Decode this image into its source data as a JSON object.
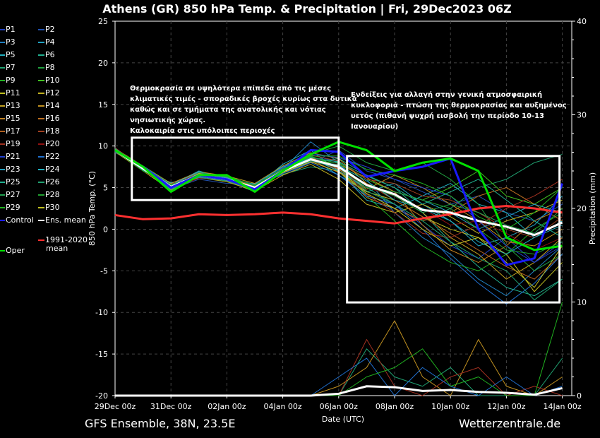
{
  "chart_data": {
    "type": "line",
    "title": "Athens  (GR)  850 hPa Temp. & Precipitation | Fri, 29Dec2023 06Z",
    "xlabel": "Date (UTC)",
    "ylabel": "850 hPa Temp. (°C)",
    "y2label": "Precipitation (mm)",
    "ylim": [
      -20,
      25
    ],
    "y2lim": [
      0,
      40
    ],
    "yticks": [
      25,
      20,
      15,
      10,
      5,
      0,
      -5,
      -10,
      -15,
      -20
    ],
    "y2ticks": [
      40,
      30,
      20,
      10,
      0
    ],
    "xticks": [
      "29Dec 00z",
      "31Dec 00z",
      "02Jan 00z",
      "04Jan 00z",
      "06Jan 00z",
      "08Jan 00z",
      "10Jan 00z",
      "12Jan 00z",
      "14Jan 00z"
    ],
    "x_days": [
      0,
      1,
      2,
      3,
      4,
      5,
      6,
      7,
      8,
      9,
      10,
      11,
      12,
      13,
      14,
      15,
      16
    ],
    "grid": true,
    "legend_position": "left-outside",
    "members": [
      {
        "name": "P1",
        "color": "#2040c0",
        "values": [
          9.6,
          7.0,
          5.5,
          6.8,
          6.2,
          4.6,
          7.5,
          9.0,
          8.0,
          4.0,
          3.0,
          0.5,
          -2.0,
          -3.5,
          -1.0,
          -4.0,
          -2.0
        ]
      },
      {
        "name": "P2",
        "color": "#2050b0",
        "values": [
          9.2,
          7.5,
          4.8,
          6.0,
          5.5,
          5.5,
          6.5,
          8.0,
          9.5,
          7.0,
          6.0,
          4.5,
          3.0,
          4.0,
          2.0,
          1.0,
          3.0
        ]
      },
      {
        "name": "P3",
        "color": "#2080c0",
        "values": [
          9.8,
          7.2,
          5.0,
          6.5,
          6.5,
          4.8,
          7.2,
          10.5,
          8.0,
          6.0,
          2.0,
          -1.0,
          -3.0,
          -6.0,
          -8.0,
          -5.0,
          -2.0
        ]
      },
      {
        "name": "P4",
        "color": "#20a0c0",
        "values": [
          9.4,
          7.6,
          5.3,
          7.0,
          6.0,
          5.2,
          6.8,
          8.5,
          6.5,
          4.5,
          5.5,
          3.0,
          1.0,
          -2.0,
          -1.0,
          0.5,
          4.0
        ]
      },
      {
        "name": "P5",
        "color": "#20b0c0",
        "values": [
          9.5,
          7.0,
          5.6,
          6.2,
          6.3,
          5.0,
          7.8,
          9.5,
          7.0,
          3.5,
          2.5,
          4.0,
          5.5,
          3.0,
          2.0,
          -1.0,
          1.0
        ]
      },
      {
        "name": "P6",
        "color": "#20b090",
        "values": [
          9.7,
          7.4,
          5.0,
          6.8,
          5.8,
          4.5,
          7.0,
          8.0,
          8.5,
          6.5,
          5.0,
          2.0,
          -1.5,
          -4.5,
          -7.0,
          -8.0,
          -6.0
        ]
      },
      {
        "name": "P7",
        "color": "#20a070",
        "values": [
          9.3,
          7.1,
          4.9,
          6.4,
          6.1,
          5.4,
          6.6,
          7.5,
          7.0,
          5.0,
          3.0,
          1.0,
          2.5,
          5.0,
          6.0,
          8.0,
          9.0
        ]
      },
      {
        "name": "P8",
        "color": "#20a040",
        "values": [
          9.6,
          7.5,
          5.2,
          6.6,
          5.9,
          4.9,
          7.4,
          9.0,
          10.0,
          8.0,
          7.0,
          8.0,
          6.0,
          3.0,
          -2.0,
          -5.0,
          -3.0
        ]
      },
      {
        "name": "P9",
        "color": "#20b020",
        "values": [
          9.4,
          7.3,
          5.4,
          6.3,
          6.4,
          5.1,
          7.1,
          8.8,
          7.5,
          4.0,
          1.0,
          -2.0,
          -4.0,
          -5.0,
          -3.0,
          0.0,
          2.0
        ]
      },
      {
        "name": "P10",
        "color": "#40c020",
        "values": [
          9.5,
          7.2,
          5.0,
          6.7,
          6.0,
          5.3,
          6.9,
          8.2,
          8.0,
          6.0,
          4.5,
          3.5,
          5.0,
          7.0,
          4.0,
          3.0,
          5.0
        ]
      },
      {
        "name": "P11",
        "color": "#c0c020",
        "values": [
          9.6,
          7.4,
          5.2,
          6.5,
          6.2,
          5.0,
          7.0,
          8.5,
          7.0,
          4.5,
          3.5,
          1.5,
          0.0,
          -1.0,
          -3.0,
          -7.5,
          -4.0
        ]
      },
      {
        "name": "P12",
        "color": "#c0b020",
        "values": [
          9.3,
          7.0,
          4.7,
          6.2,
          5.7,
          4.6,
          6.5,
          7.8,
          6.0,
          3.0,
          2.0,
          3.0,
          1.5,
          -0.5,
          1.0,
          2.0,
          3.5
        ]
      },
      {
        "name": "P13",
        "color": "#c0a020",
        "values": [
          9.7,
          7.6,
          5.5,
          6.9,
          6.4,
          5.5,
          7.6,
          9.2,
          8.5,
          5.5,
          4.0,
          2.0,
          -1.0,
          -3.0,
          -6.0,
          -4.0,
          -1.0
        ]
      },
      {
        "name": "P14",
        "color": "#c09020",
        "values": [
          9.5,
          7.3,
          5.1,
          6.6,
          6.1,
          5.2,
          7.2,
          8.6,
          7.2,
          4.8,
          6.5,
          5.0,
          3.0,
          1.0,
          -1.5,
          -2.0,
          0.0
        ]
      },
      {
        "name": "P15",
        "color": "#c08020",
        "values": [
          9.4,
          7.1,
          4.9,
          6.3,
          5.8,
          4.7,
          6.8,
          8.0,
          7.8,
          6.2,
          4.5,
          0.5,
          -2.5,
          -4.0,
          -2.0,
          1.0,
          2.5
        ]
      },
      {
        "name": "P16",
        "color": "#c07020",
        "values": [
          9.6,
          7.5,
          5.3,
          6.8,
          6.3,
          5.1,
          7.3,
          8.7,
          7.0,
          3.8,
          2.5,
          1.0,
          2.0,
          4.0,
          5.0,
          3.0,
          1.0
        ]
      },
      {
        "name": "P17",
        "color": "#b06020",
        "values": [
          9.5,
          7.2,
          5.0,
          6.5,
          6.0,
          4.9,
          7.0,
          8.3,
          6.8,
          5.5,
          3.5,
          1.5,
          -0.5,
          -2.5,
          -4.5,
          -6.0,
          -3.0
        ]
      },
      {
        "name": "P18",
        "color": "#a04020",
        "values": [
          9.3,
          7.4,
          5.2,
          6.4,
          6.2,
          5.3,
          7.1,
          8.9,
          8.2,
          6.0,
          5.5,
          4.0,
          3.5,
          2.0,
          0.0,
          -1.0,
          1.5
        ]
      },
      {
        "name": "P19",
        "color": "#a03020",
        "values": [
          9.8,
          7.3,
          5.4,
          6.7,
          5.9,
          5.0,
          6.9,
          8.1,
          7.6,
          4.2,
          2.0,
          -0.5,
          -1.0,
          0.5,
          2.5,
          4.0,
          6.0
        ]
      },
      {
        "name": "P20",
        "color": "#901010",
        "values": [
          9.4,
          7.0,
          5.0,
          6.1,
          6.0,
          4.8,
          7.2,
          8.4,
          7.3,
          5.0,
          4.0,
          2.5,
          0.5,
          1.0,
          -0.5,
          -2.5,
          -1.0
        ]
      },
      {
        "name": "P21",
        "color": "#2040d0",
        "values": [
          9.5,
          7.5,
          5.1,
          6.6,
          6.4,
          5.2,
          7.4,
          9.1,
          8.6,
          7.5,
          6.0,
          5.0,
          4.0,
          1.0,
          -2.0,
          -4.0,
          -1.5
        ]
      },
      {
        "name": "P22",
        "color": "#2070d0",
        "values": [
          9.6,
          7.2,
          4.8,
          6.3,
          5.9,
          4.9,
          6.7,
          8.0,
          6.5,
          4.0,
          3.0,
          0.0,
          -3.5,
          -6.5,
          -9.0,
          -6.5,
          -3.0
        ]
      },
      {
        "name": "P23",
        "color": "#20a0c0",
        "values": [
          9.4,
          7.4,
          5.3,
          6.9,
          6.1,
          5.4,
          7.5,
          8.5,
          7.0,
          5.0,
          4.5,
          3.5,
          2.0,
          0.0,
          1.5,
          3.0,
          2.0
        ]
      },
      {
        "name": "P24",
        "color": "#20b0c0",
        "values": [
          9.5,
          7.1,
          5.0,
          6.4,
          6.2,
          5.0,
          7.0,
          8.3,
          7.7,
          5.8,
          3.5,
          2.5,
          1.0,
          -1.5,
          -3.0,
          -1.0,
          0.5
        ]
      },
      {
        "name": "P25",
        "color": "#20b090",
        "values": [
          9.7,
          7.3,
          5.2,
          6.6,
          6.0,
          5.1,
          7.1,
          8.6,
          8.1,
          6.4,
          5.0,
          3.0,
          4.5,
          6.0,
          3.5,
          1.0,
          -1.0
        ]
      },
      {
        "name": "P26",
        "color": "#20a070",
        "values": [
          9.3,
          7.6,
          5.4,
          6.2,
          5.8,
          4.7,
          6.9,
          8.2,
          7.4,
          4.6,
          3.0,
          1.0,
          -1.5,
          -3.5,
          -5.0,
          -8.5,
          -6.0
        ]
      },
      {
        "name": "P27",
        "color": "#20a050",
        "values": [
          9.6,
          7.2,
          4.9,
          6.8,
          6.3,
          5.3,
          7.3,
          8.7,
          7.9,
          5.2,
          4.0,
          2.0,
          3.0,
          2.0,
          0.5,
          -0.5,
          2.5
        ]
      },
      {
        "name": "P28",
        "color": "#20a030",
        "values": [
          9.5,
          7.4,
          5.1,
          6.5,
          6.1,
          5.0,
          7.0,
          8.4,
          7.5,
          5.0,
          4.5,
          3.5,
          2.5,
          0.0,
          -2.5,
          -3.0,
          -1.5
        ]
      },
      {
        "name": "P29",
        "color": "#20b020",
        "values": [
          9.4,
          7.0,
          5.3,
          6.4,
          6.4,
          5.2,
          7.2,
          8.8,
          8.8,
          7.2,
          6.5,
          5.5,
          4.0,
          1.5,
          0.0,
          2.0,
          5.0
        ]
      },
      {
        "name": "P30",
        "color": "#c0c020",
        "values": [
          9.6,
          7.5,
          5.0,
          6.7,
          5.9,
          4.9,
          6.8,
          8.1,
          6.9,
          4.3,
          2.5,
          0.0,
          -2.0,
          -1.0,
          -4.0,
          -7.0,
          -2.0
        ]
      }
    ],
    "control": {
      "name": "Control",
      "color": "#1a1aff",
      "values": [
        9.5,
        7.5,
        5.0,
        6.5,
        6.0,
        4.8,
        7.0,
        9.5,
        9.3,
        6.3,
        7.0,
        7.5,
        8.5,
        0.0,
        -4.3,
        -3.5,
        5.5
      ]
    },
    "ens_mean": {
      "name": "Ens. mean",
      "color": "#ffffff",
      "values": [
        9.5,
        7.3,
        5.1,
        6.5,
        6.0,
        5.0,
        7.0,
        8.4,
        7.5,
        5.3,
        4.2,
        2.3,
        2.0,
        1.0,
        0.3,
        -0.7,
        0.8
      ]
    },
    "climate_mean": {
      "name": "1991-2020 mean",
      "name_line1": "1991-2020",
      "name_line2": "mean",
      "color": "#ff3030",
      "values": [
        1.7,
        1.2,
        1.3,
        1.8,
        1.7,
        1.8,
        2.0,
        1.8,
        1.3,
        1.0,
        0.7,
        1.3,
        1.8,
        2.5,
        2.8,
        2.5,
        2.0
      ]
    },
    "oper": {
      "name": "Oper",
      "color": "#00e000",
      "values": [
        9.5,
        7.5,
        4.5,
        6.5,
        6.5,
        4.5,
        7.0,
        9.0,
        10.5,
        9.5,
        7.0,
        8.0,
        8.5,
        7.0,
        -1.0,
        -2.5,
        -2.0
      ]
    },
    "precip_mean": {
      "color": "#ffffff",
      "values": [
        0,
        0,
        0,
        0,
        0,
        0,
        0,
        0,
        0.2,
        1.0,
        0.9,
        0.5,
        0.6,
        0.4,
        0.3,
        0.1,
        0.8
      ]
    },
    "precip_members": [
      {
        "color": "#20a070",
        "values": [
          0,
          0,
          0,
          0,
          0,
          0,
          0,
          0,
          0,
          5,
          2,
          1,
          3,
          0,
          0,
          0,
          4
        ]
      },
      {
        "color": "#c09020",
        "values": [
          0,
          0,
          0,
          0,
          0,
          0,
          0,
          0,
          1,
          3,
          8,
          2,
          0,
          6,
          1,
          0,
          2
        ]
      },
      {
        "color": "#a03020",
        "values": [
          0,
          0,
          0,
          0,
          0,
          0,
          0,
          0,
          0,
          6,
          1,
          0,
          2,
          3,
          0,
          1,
          0
        ]
      },
      {
        "color": "#2070d0",
        "values": [
          0,
          0,
          0,
          0,
          0,
          0,
          0,
          0,
          2,
          4,
          0,
          3,
          1,
          0,
          2,
          0,
          1
        ]
      },
      {
        "color": "#20b020",
        "values": [
          0,
          0,
          0,
          0,
          0,
          0,
          0,
          0,
          0,
          2,
          3,
          5,
          1,
          2,
          0,
          0,
          10
        ]
      }
    ],
    "annotations": [
      {
        "text": "Θερμοκρασία σε υψηλότερα επίπεδα από τις μέσες\nκλιματικές τιμές - σποραδικές βροχές κυρίως στα δυτικά\nκαθώς και σε τμήματα της ανατολικής και νότιας\nνησιωτικής χώρας.\nΚαλοκαιρία στις υπόλοιπες περιοχές",
        "box_days": [
          0.6,
          8.0
        ],
        "box_temps": [
          3.5,
          11.0
        ]
      },
      {
        "text": "Ενδείξεις για αλλαγή στην γενική ατμοσφαιρική\nκυκλοφοριά - πτώση της θερμοκρασίας και αυξημένος\nυετός (πιθανή ψυχρή εισβολή την περίοδο 10-13\nΙανουαρίου)",
        "box_days": [
          8.3,
          15.9
        ],
        "box_temps": [
          -8.8,
          8.8
        ]
      }
    ]
  },
  "footer": {
    "left": "GFS Ensemble, 38N, 23.5E",
    "right": "Wetterzentrale.de"
  }
}
